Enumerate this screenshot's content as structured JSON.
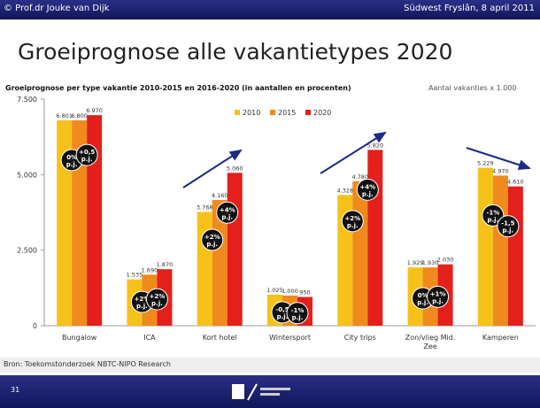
{
  "header": {
    "author": "© Prof.dr Jouke van Dijk",
    "event": "Südwest Fryslân, 8 april 2011"
  },
  "slide_title": "Groeiprognose alle vakantietypes 2020",
  "source": "Bron: Toekomstonderzoek NBTC-NIPO Research",
  "page_number": "31",
  "chart_data": {
    "type": "bar",
    "title": "Groeiprognose per type vakantie 2010-2015 en 2016-2020 (in aantallen en procenten)",
    "unit_note": "Aantal vakanties x 1.000",
    "categories": [
      "Bungalow",
      "ICA",
      "Kort hotel",
      "Wintersport",
      "City trips",
      "Zon/vlieg Mid. Zee",
      "Kamperen"
    ],
    "series": [
      {
        "name": "2010",
        "color": "#f6c21a",
        "values": [
          6801,
          1535,
          3768,
          1025,
          4328,
          1929,
          5229
        ],
        "value_labels": [
          "6.801",
          "1.535",
          "3.768",
          "1.025",
          "4.328",
          "1.929",
          "5.229"
        ]
      },
      {
        "name": "2015",
        "color": "#f08a1c",
        "values": [
          6800,
          1690,
          4160,
          1000,
          4780,
          1930,
          4970
        ],
        "value_labels": [
          "6.800",
          "1.690",
          "4.160",
          "1.000",
          "4.780",
          "1.930",
          "4.970"
        ]
      },
      {
        "name": "2020",
        "color": "#e3201b",
        "values": [
          6970,
          1870,
          5060,
          950,
          5820,
          2030,
          4610
        ],
        "value_labels": [
          "6.970",
          "1.870",
          "5.060",
          "950",
          "5.820",
          "2.030",
          "4.610"
        ]
      }
    ],
    "annotations": [
      [
        [
          "0%",
          "p.j."
        ],
        [
          "+0,5",
          "p.j."
        ]
      ],
      [
        [
          "+2%",
          "p.j."
        ],
        [
          "+2%",
          "p.j."
        ]
      ],
      [
        [
          "+2%",
          "p.j."
        ],
        [
          "+4%",
          "p.j."
        ]
      ],
      [
        [
          "-0,5",
          "p.j."
        ],
        [
          "-1%",
          "p.j."
        ]
      ],
      [
        [
          "+2%",
          "p.j."
        ],
        [
          "+4%",
          "p.j."
        ]
      ],
      [
        [
          "0%",
          "p.j."
        ],
        [
          "+1%",
          "p.j."
        ]
      ],
      [
        [
          "-1%",
          "p.j."
        ],
        [
          "-1,5",
          "p.j."
        ]
      ]
    ],
    "ylim": [
      0,
      7500
    ],
    "yticks": [
      {
        "value": 0,
        "label": "0"
      },
      {
        "value": 2500,
        "label": "2.500"
      },
      {
        "value": 5000,
        "label": "5.000"
      },
      {
        "value": 7500,
        "label": "7.500"
      }
    ],
    "grid": false
  }
}
